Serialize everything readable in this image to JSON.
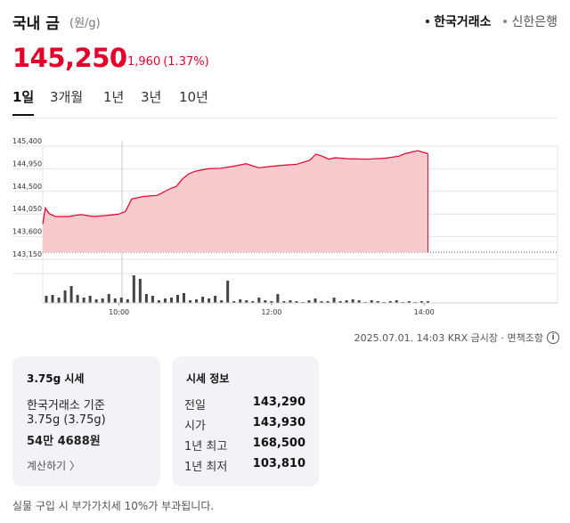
{
  "header": {
    "title": "국내 금",
    "unit": "(원/g)",
    "sources": [
      {
        "label": "한국거래소",
        "active": true
      },
      {
        "label": "신한은행",
        "active": false
      }
    ]
  },
  "price": {
    "current": "145,250",
    "change": "1,960",
    "change_pct": "(1.37%)",
    "direction": "up",
    "color": "#e4002b"
  },
  "tabs": [
    "1일",
    "3개월",
    "1년",
    "3년",
    "10년"
  ],
  "active_tab": "1일",
  "chart_data": {
    "type": "area",
    "y_tick_labels": [
      "145,400",
      "144,950",
      "144,500",
      "144,050",
      "143,600",
      "143,150"
    ],
    "ylim": [
      143150,
      145400
    ],
    "x_tick_labels": [
      "10:00",
      "12:00",
      "14:00"
    ],
    "x_range": [
      "09:00",
      "14:03"
    ],
    "previous_close": 143290,
    "series": [
      {
        "color": "#e4002b",
        "fill": "#f8c9cd",
        "points": [
          [
            "09:00",
            143850
          ],
          [
            "09:02",
            144170
          ],
          [
            "09:05",
            144060
          ],
          [
            "09:10",
            144000
          ],
          [
            "09:20",
            144000
          ],
          [
            "09:30",
            144040
          ],
          [
            "09:40",
            144000
          ],
          [
            "09:50",
            144020
          ],
          [
            "10:00",
            144050
          ],
          [
            "10:05",
            144100
          ],
          [
            "10:10",
            144350
          ],
          [
            "10:20",
            144400
          ],
          [
            "10:30",
            144420
          ],
          [
            "10:40",
            144550
          ],
          [
            "10:45",
            144600
          ],
          [
            "10:50",
            144750
          ],
          [
            "10:55",
            144850
          ],
          [
            "11:00",
            144900
          ],
          [
            "11:10",
            144950
          ],
          [
            "11:20",
            144960
          ],
          [
            "11:30",
            145000
          ],
          [
            "11:40",
            145050
          ],
          [
            "11:50",
            144970
          ],
          [
            "12:00",
            145000
          ],
          [
            "12:10",
            145020
          ],
          [
            "12:20",
            145040
          ],
          [
            "12:30",
            145120
          ],
          [
            "12:35",
            145240
          ],
          [
            "12:40",
            145200
          ],
          [
            "12:45",
            145140
          ],
          [
            "12:50",
            145170
          ],
          [
            "13:00",
            145150
          ],
          [
            "13:15",
            145140
          ],
          [
            "13:30",
            145160
          ],
          [
            "13:40",
            145200
          ],
          [
            "13:45",
            145250
          ],
          [
            "13:55",
            145310
          ],
          [
            "14:03",
            145250
          ]
        ]
      }
    ],
    "volume": [
      8,
      9,
      6,
      14,
      19,
      9,
      6,
      8,
      4,
      5,
      10,
      5,
      6,
      4,
      31,
      27,
      10,
      8,
      3,
      5,
      6,
      9,
      11,
      3,
      4,
      7,
      5,
      8,
      3,
      25,
      2,
      4,
      3,
      2,
      6,
      3,
      2,
      10,
      2,
      3,
      2,
      1,
      3,
      5,
      2,
      2,
      6,
      2,
      3,
      4,
      3,
      1,
      3,
      2,
      1,
      2,
      3,
      1,
      2,
      1,
      2,
      2
    ]
  },
  "as_of": "2025.07.01. 14:03 KRX 금시장 · 면책조항",
  "card_spot": {
    "title": "3.75g 시세",
    "line1": "한국거래소 기준",
    "line2": "3.75g (3.75g)",
    "value": "54만 4688원",
    "link": "계산하기 〉"
  },
  "card_info": {
    "title": "시세 정보",
    "rows": [
      {
        "label": "전일",
        "value": "143,290"
      },
      {
        "label": "시가",
        "value": "143,930"
      },
      {
        "label": "1년 최고",
        "value": "168,500"
      },
      {
        "label": "1년 최저",
        "value": "103,810"
      }
    ]
  },
  "footnote": "실물 구입 시 부가가치세 10%가 부과됩니다."
}
